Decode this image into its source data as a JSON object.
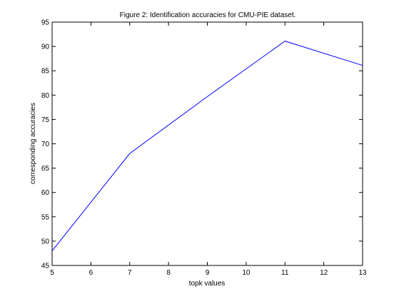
{
  "chart_data": {
    "type": "line",
    "title": "Figure 2: Identification accuracies for CMU-PIE dataset.",
    "xlabel": "topk values",
    "ylabel": "corresponding accuracies",
    "xlim": [
      5,
      13
    ],
    "ylim": [
      45,
      95
    ],
    "xticks": [
      "5",
      "6",
      "7",
      "8",
      "9",
      "10",
      "11",
      "12",
      "13"
    ],
    "yticks": [
      "45",
      "50",
      "55",
      "60",
      "65",
      "70",
      "75",
      "80",
      "85",
      "90",
      "95"
    ],
    "grid": false,
    "legend": "none",
    "series": [
      {
        "color": "#0000ff",
        "x": [
          5,
          7,
          9,
          11,
          13
        ],
        "y": [
          48,
          68,
          79.7,
          91.1,
          86.1
        ]
      }
    ]
  },
  "colors": {
    "line": "#0000ff",
    "axes": "#000000",
    "background": "#ffffff"
  }
}
